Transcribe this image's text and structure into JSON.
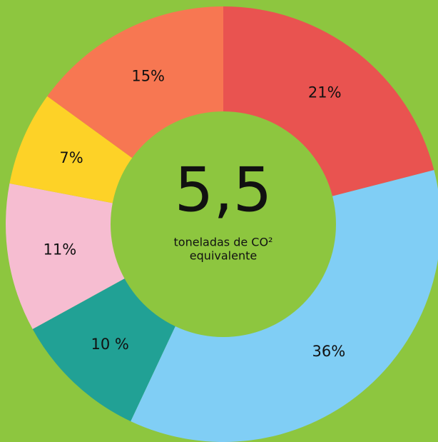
{
  "chart_data": {
    "type": "donut",
    "values": [
      21,
      36,
      10,
      11,
      7,
      15
    ],
    "value_labels": [
      "21%",
      "36%",
      "10 %",
      "11%",
      "7%",
      "15%"
    ],
    "colors": [
      "#e95350",
      "#80cef5",
      "#21a195",
      "#f6bdd1",
      "#fdd227",
      "#f77752"
    ],
    "center_value": "5,5",
    "center_label": [
      "toneladas de CO²",
      "equivalente"
    ]
  }
}
